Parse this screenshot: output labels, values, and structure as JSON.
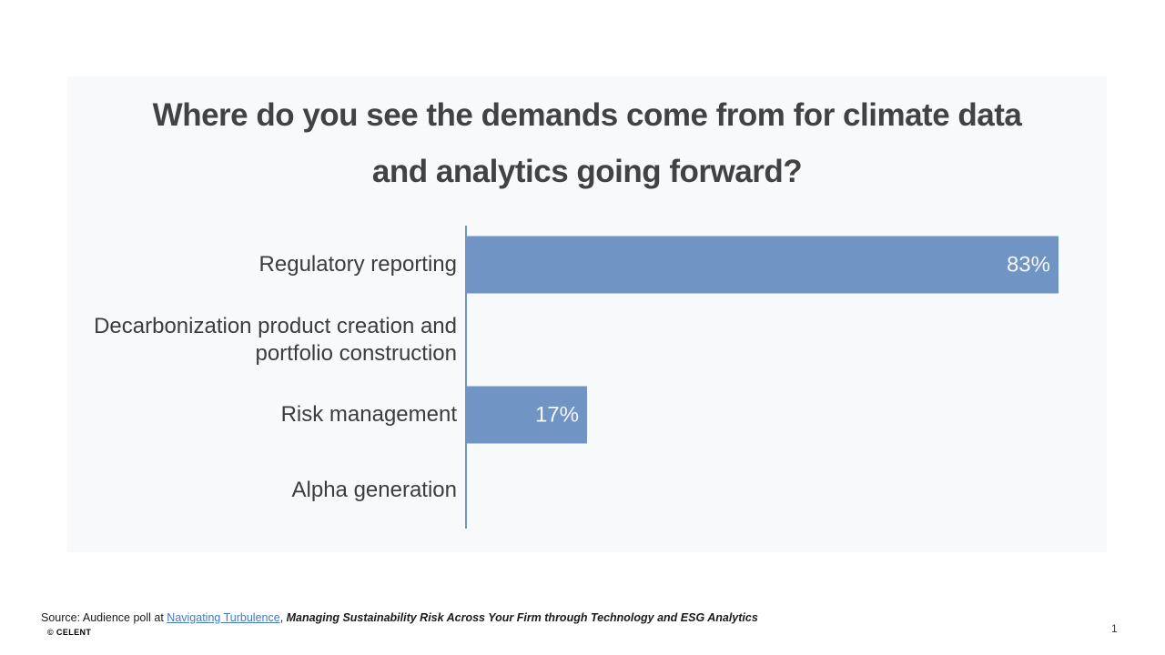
{
  "slide": {
    "title_line1": "Where do you see the demands come from for climate data",
    "title_line2": "and analytics going forward?"
  },
  "chart_data": {
    "type": "bar",
    "orientation": "horizontal",
    "title": "Where do you see the demands come from for climate data and analytics going forward?",
    "categories": [
      "Regulatory reporting",
      "Decarbonization product creation and portfolio construction",
      "Risk management",
      "Alpha generation"
    ],
    "values": [
      83,
      0,
      17,
      0
    ],
    "value_labels": [
      "83%",
      "",
      "17%",
      ""
    ],
    "unit": "%",
    "xlim": [
      0,
      89
    ],
    "grid": false,
    "legend": false,
    "bar_color": "#7094c4",
    "axis_color": "#6e95c5",
    "label_color": "#3c3c3c",
    "value_label_color": "#f4f7fb"
  },
  "footer": {
    "source_prefix": "Source: Audience poll at ",
    "source_link": "Navigating Turbulence",
    "source_separator": ", ",
    "source_title": "Managing Sustainability Risk Across Your Firm through Technology and ESG Analytics",
    "link_color": "#4579bd",
    "copyright": "© CELENT",
    "page_number": "1"
  },
  "colors": {
    "card_background": "#f8f9fb",
    "page_background": "#ffffff",
    "title_text": "#424242"
  }
}
